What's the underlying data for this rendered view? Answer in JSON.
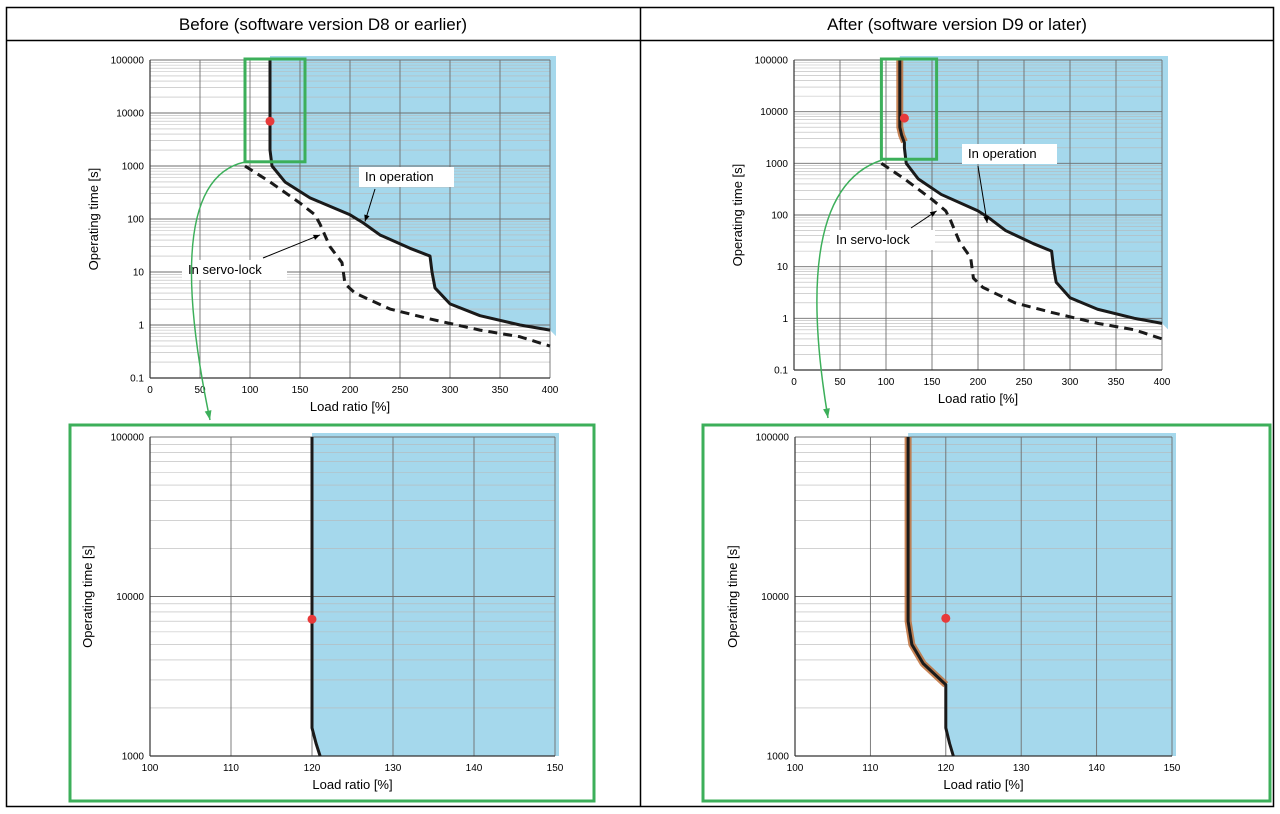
{
  "header": {
    "left": "Before (software version D8 or earlier)",
    "right": "After (software version D9 or later)"
  },
  "colors": {
    "fill": "#a5d8ec",
    "curve": "#1a1a1a",
    "highlight": "#c0703a",
    "point": "#e83a3a",
    "frame": "#3caf5a"
  },
  "chart_data": [
    {
      "id": "before_overview",
      "type": "line",
      "xlabel": "Load ratio [%]",
      "ylabel": "Operating time [s]",
      "xlim": [
        0,
        400
      ],
      "ylim": [
        0.1,
        100000
      ],
      "yscale": "log",
      "x_ticks": [
        "0",
        "50",
        "100",
        "150",
        "200",
        "250",
        "300",
        "350",
        "400"
      ],
      "y_ticks": [
        "0.1",
        "1",
        "10",
        "100",
        "1000",
        "10000",
        "100000"
      ],
      "grid": true,
      "series": [
        {
          "style": "solid",
          "points": [
            [
              120,
              100000
            ],
            [
              120,
              2000
            ],
            [
              122,
              1000
            ],
            [
              135,
              500
            ],
            [
              160,
              250
            ],
            [
              200,
              120
            ],
            [
              213,
              85
            ],
            [
              230,
              50
            ],
            [
              260,
              28
            ],
            [
              280,
              20
            ],
            [
              282,
              10
            ],
            [
              285,
              5
            ],
            [
              300,
              2.5
            ],
            [
              330,
              1.5
            ],
            [
              370,
              1
            ],
            [
              400,
              0.8
            ]
          ]
        },
        {
          "style": "dashed",
          "points": [
            [
              95,
              1000
            ],
            [
              120,
              500
            ],
            [
              150,
              200
            ],
            [
              165,
              120
            ],
            [
              170,
              80
            ],
            [
              180,
              30
            ],
            [
              192,
              15
            ],
            [
              195,
              6
            ],
            [
              205,
              4
            ],
            [
              240,
              2
            ],
            [
              280,
              1.3
            ],
            [
              330,
              0.8
            ],
            [
              370,
              0.6
            ],
            [
              400,
              0.4
            ]
          ]
        }
      ],
      "point": [
        120,
        7000
      ],
      "zoom_box": {
        "x": [
          95,
          155
        ],
        "y": [
          1200,
          100000
        ]
      },
      "annotations": [
        {
          "text": "In operation",
          "arrow_to": [
            215,
            90
          ]
        },
        {
          "text": "In servo-lock",
          "arrow_to": [
            170,
            50
          ]
        }
      ]
    },
    {
      "id": "after_overview",
      "type": "line",
      "xlabel": "Load ratio [%]",
      "ylabel": "Operating time [s]",
      "xlim": [
        0,
        400
      ],
      "ylim": [
        0.1,
        100000
      ],
      "yscale": "log",
      "x_ticks": [
        "0",
        "50",
        "100",
        "150",
        "200",
        "250",
        "300",
        "350",
        "400"
      ],
      "y_ticks": [
        "0.1",
        "1",
        "10",
        "100",
        "1000",
        "10000",
        "100000"
      ],
      "grid": true,
      "series": [
        {
          "style": "solid",
          "points": [
            [
              115,
              100000
            ],
            [
              115,
              5000
            ],
            [
              117,
              3500
            ],
            [
              120,
              2500
            ],
            [
              120,
              2000
            ],
            [
              122,
              1000
            ],
            [
              135,
              500
            ],
            [
              160,
              250
            ],
            [
              200,
              120
            ],
            [
              213,
              85
            ],
            [
              230,
              50
            ],
            [
              260,
              28
            ],
            [
              280,
              20
            ],
            [
              282,
              10
            ],
            [
              285,
              5
            ],
            [
              300,
              2.5
            ],
            [
              330,
              1.5
            ],
            [
              370,
              1
            ],
            [
              400,
              0.8
            ]
          ]
        },
        {
          "style": "dashed",
          "points": [
            [
              95,
              1000
            ],
            [
              120,
              500
            ],
            [
              150,
              200
            ],
            [
              165,
              120
            ],
            [
              170,
              80
            ],
            [
              180,
              30
            ],
            [
              192,
              15
            ],
            [
              195,
              6
            ],
            [
              205,
              4
            ],
            [
              240,
              2
            ],
            [
              280,
              1.3
            ],
            [
              330,
              0.8
            ],
            [
              370,
              0.6
            ],
            [
              400,
              0.4
            ]
          ]
        }
      ],
      "highlight": [
        [
          115,
          100000
        ],
        [
          115,
          5000
        ],
        [
          117,
          3500
        ],
        [
          120,
          2600
        ]
      ],
      "point": [
        120,
        7500
      ],
      "zoom_box": {
        "x": [
          95,
          155
        ],
        "y": [
          1200,
          100000
        ]
      },
      "annotations": [
        {
          "text": "In operation",
          "arrow_to": [
            210,
            70
          ]
        },
        {
          "text": "In servo-lock",
          "arrow_to": [
            155,
            120
          ]
        }
      ]
    },
    {
      "id": "before_zoom",
      "type": "line",
      "xlabel": "Load ratio [%]",
      "ylabel": "Operating time [s]",
      "xlim": [
        100,
        150
      ],
      "ylim": [
        1000,
        100000
      ],
      "yscale": "log",
      "x_ticks": [
        "100",
        "110",
        "120",
        "130",
        "140",
        "150"
      ],
      "y_ticks": [
        "1000",
        "10000",
        "100000"
      ],
      "grid": true,
      "series": [
        {
          "style": "solid",
          "points": [
            [
              120,
              100000
            ],
            [
              120,
              1500
            ],
            [
              120.5,
              1200
            ],
            [
              121,
              1000
            ]
          ]
        }
      ],
      "point": [
        120,
        7200
      ]
    },
    {
      "id": "after_zoom",
      "type": "line",
      "xlabel": "Load ratio [%]",
      "ylabel": "Operating time [s]",
      "xlim": [
        100,
        150
      ],
      "ylim": [
        1000,
        100000
      ],
      "yscale": "log",
      "x_ticks": [
        "100",
        "110",
        "120",
        "130",
        "140",
        "150"
      ],
      "y_ticks": [
        "1000",
        "10000",
        "100000"
      ],
      "grid": true,
      "series": [
        {
          "style": "solid",
          "points": [
            [
              115,
              100000
            ],
            [
              115,
              7000
            ],
            [
              115.5,
              5000
            ],
            [
              117,
              3800
            ],
            [
              120,
              2800
            ],
            [
              120,
              1500
            ],
            [
              120.5,
              1200
            ],
            [
              121,
              1000
            ]
          ]
        }
      ],
      "highlight": [
        [
          115,
          100000
        ],
        [
          115,
          7000
        ],
        [
          115.5,
          5000
        ],
        [
          117,
          3800
        ],
        [
          120,
          2800
        ]
      ],
      "point": [
        120,
        7300
      ]
    }
  ]
}
